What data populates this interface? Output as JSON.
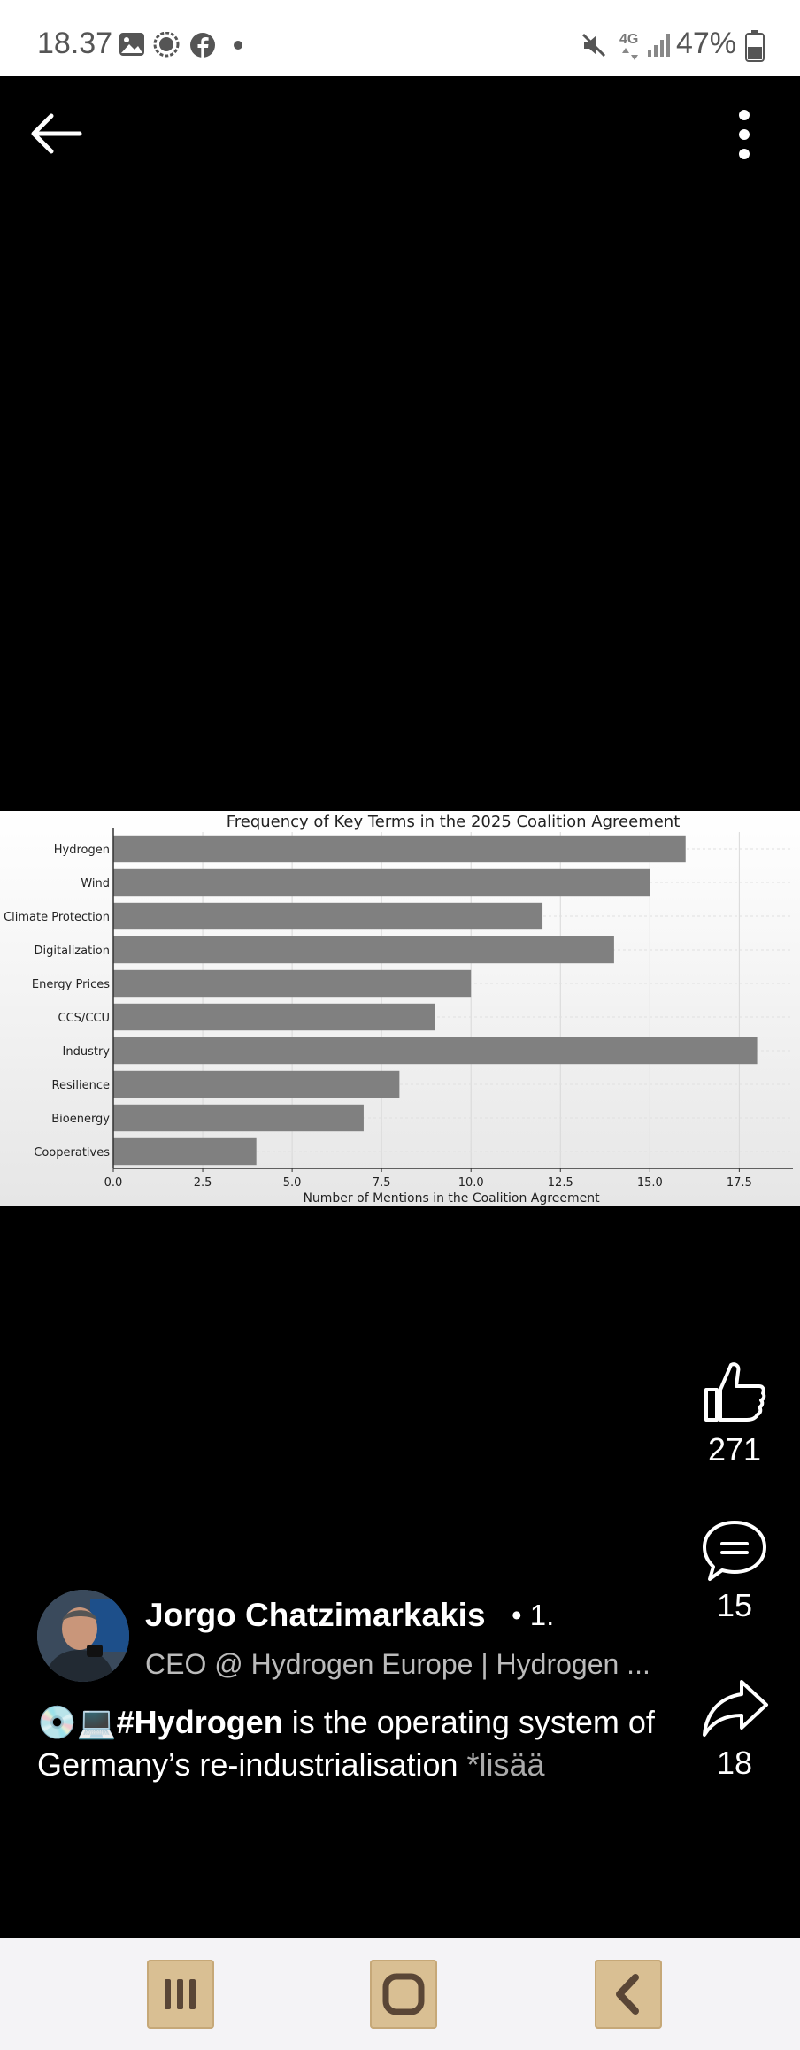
{
  "status_bar": {
    "time": "18.37",
    "network": "4G",
    "battery": "47%",
    "icons": [
      "gallery-icon",
      "chat-bubble-icon",
      "facebook-icon",
      "dot-icon",
      "mute-icon",
      "signal-icon",
      "battery-icon"
    ]
  },
  "topbar": {
    "back_icon": "arrow-left-icon",
    "menu_icon": "more-vertical-icon"
  },
  "chart_data": {
    "type": "bar",
    "orientation": "horizontal",
    "title": "Frequency of Key Terms in the 2025 Coalition Agreement",
    "xlabel": "Number of Mentions in the Coalition Agreement",
    "ylabel": "",
    "categories": [
      "Hydrogen",
      "Wind",
      "Climate Protection",
      "Digitalization",
      "Energy Prices",
      "CCS/CCU",
      "Industry",
      "Resilience",
      "Bioenergy",
      "Cooperatives"
    ],
    "values": [
      16,
      15,
      12,
      14,
      10,
      9,
      18,
      8,
      7,
      4
    ],
    "xticks": [
      "0.0",
      "2.5",
      "5.0",
      "7.5",
      "10.0",
      "12.5",
      "15.0",
      "17.5"
    ],
    "xlim": [
      0,
      19
    ],
    "grid": true,
    "bar_color": "#808080"
  },
  "actions": {
    "like_count": "271",
    "comment_count": "15",
    "share_count": "18"
  },
  "author": {
    "name": "Jorgo Chatzimarkakis",
    "degree": "• 1.",
    "headline": "CEO @ Hydrogen Europe | Hydrogen ..."
  },
  "post": {
    "emoji": "💿💻",
    "hashtag": "#Hydrogen",
    "text_rest": " is the operating system of Germany’s re-industrialisation ",
    "more_label": "*lisää"
  },
  "nav": {
    "icons": [
      "recents-icon",
      "home-icon",
      "back-icon"
    ]
  }
}
